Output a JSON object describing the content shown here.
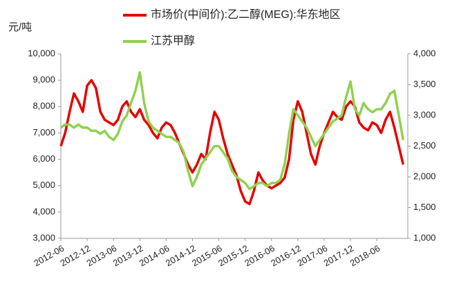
{
  "chart_data": {
    "type": "line",
    "y_label": "元/吨",
    "categories": [
      "2012-06",
      null,
      null,
      null,
      null,
      null,
      "2012-12",
      null,
      null,
      null,
      null,
      null,
      "2013-06",
      null,
      null,
      null,
      null,
      null,
      "2013-12",
      null,
      null,
      null,
      null,
      null,
      "2014-06",
      null,
      null,
      null,
      null,
      null,
      "2014-12",
      null,
      null,
      null,
      null,
      null,
      "2015-06",
      null,
      null,
      null,
      null,
      null,
      "2015-12",
      null,
      null,
      null,
      null,
      null,
      "2016-06",
      null,
      null,
      null,
      null,
      null,
      "2016-12",
      null,
      null,
      null,
      null,
      null,
      "2017-06",
      null,
      null,
      null,
      null,
      null,
      "2017-12",
      null,
      null,
      null,
      null,
      null,
      "2018-06",
      null,
      null,
      null,
      null,
      null,
      null
    ],
    "series": [
      {
        "name": "市场价(中间价):乙二醇(MEG):华东地区",
        "color": "#e60000",
        "axis": "y",
        "values": [
          6500,
          7000,
          7800,
          8500,
          8200,
          7800,
          8800,
          9000,
          8700,
          7800,
          7500,
          7400,
          7300,
          7500,
          8000,
          8200,
          7800,
          7600,
          7900,
          7500,
          7300,
          7000,
          6800,
          7200,
          7400,
          7300,
          7000,
          6600,
          6200,
          5800,
          5500,
          5800,
          6200,
          6000,
          7000,
          7800,
          7500,
          6800,
          6200,
          5800,
          5400,
          4800,
          4400,
          4300,
          4800,
          5500,
          5200,
          5000,
          4900,
          5000,
          5100,
          5300,
          6000,
          7500,
          8200,
          7800,
          7000,
          6200,
          5800,
          6500,
          7000,
          7400,
          7800,
          7600,
          7500,
          8000,
          8200,
          8000,
          7400,
          7200,
          7100,
          7400,
          7300,
          7000,
          7500,
          7800,
          7200,
          6500,
          5800
        ]
      },
      {
        "name": "江苏甲醇",
        "color": "#8fd14f",
        "axis": "y2",
        "values": [
          2800,
          2850,
          2850,
          2800,
          2850,
          2800,
          2800,
          2750,
          2750,
          2700,
          2750,
          2650,
          2600,
          2700,
          2900,
          3000,
          3200,
          3400,
          3700,
          3200,
          2900,
          2800,
          2750,
          2700,
          2650,
          2650,
          2600,
          2550,
          2400,
          2100,
          1850,
          2000,
          2200,
          2300,
          2400,
          2500,
          2500,
          2400,
          2300,
          2100,
          2000,
          1950,
          1900,
          1800,
          1850,
          1900,
          1900,
          1850,
          1900,
          1900,
          1950,
          2200,
          2700,
          3100,
          3000,
          2900,
          2800,
          2650,
          2500,
          2600,
          2700,
          2800,
          2900,
          2950,
          3000,
          3300,
          3550,
          3100,
          3000,
          3200,
          3100,
          3050,
          3100,
          3100,
          3200,
          3350,
          3400,
          3000,
          2600
        ]
      }
    ],
    "ylim": [
      3000,
      10000
    ],
    "yticks": [
      {
        "value": 3000,
        "label": "3,000"
      },
      {
        "value": 4000,
        "label": "4,000"
      },
      {
        "value": 5000,
        "label": "5,000"
      },
      {
        "value": 6000,
        "label": "6,000"
      },
      {
        "value": 7000,
        "label": "7,000"
      },
      {
        "value": 8000,
        "label": "8,000"
      },
      {
        "value": 9000,
        "label": "9,000"
      },
      {
        "value": 10000,
        "label": "10,000"
      }
    ],
    "y2lim": [
      1000,
      4000
    ],
    "y2ticks": [
      {
        "value": 1000,
        "label": "1,000"
      },
      {
        "value": 1500,
        "label": "1,500"
      },
      {
        "value": 2000,
        "label": "2,000"
      },
      {
        "value": 2500,
        "label": "2,500"
      },
      {
        "value": 3000,
        "label": "3,000"
      },
      {
        "value": 3500,
        "label": "3,500"
      },
      {
        "value": 4000,
        "label": "4,000"
      }
    ],
    "grid": false
  }
}
